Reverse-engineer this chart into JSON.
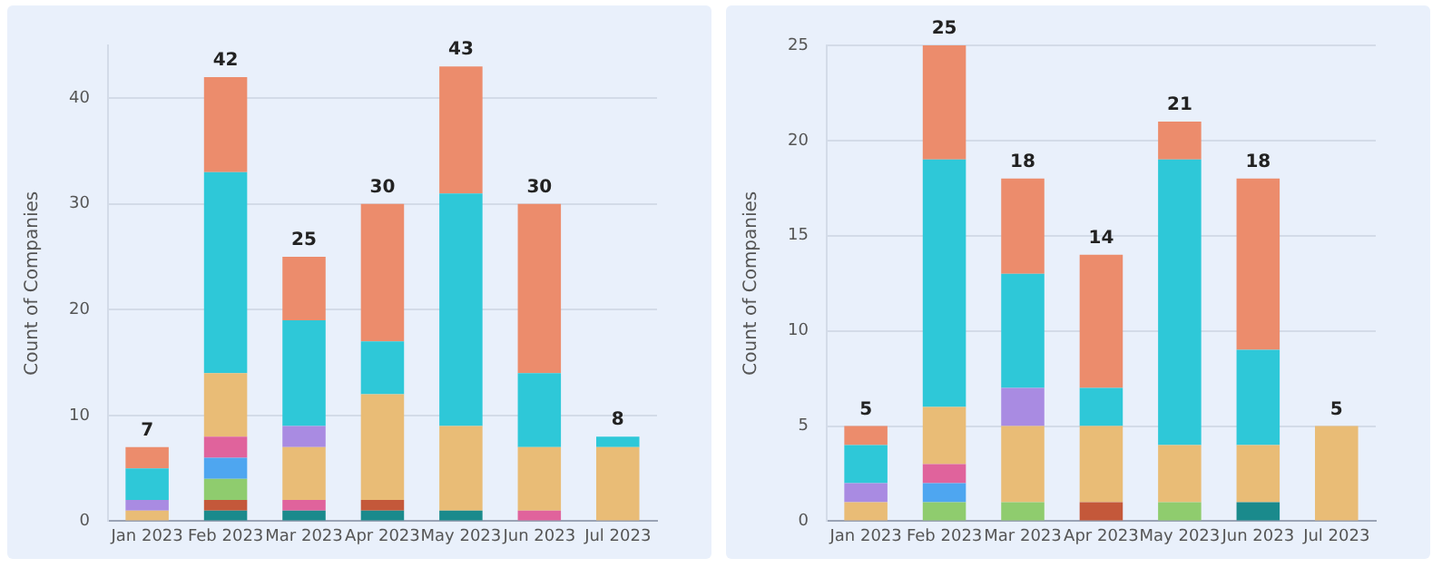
{
  "chart_data": [
    {
      "type": "bar",
      "stacked": true,
      "ylabel": "Count of Companies",
      "categories": [
        "Jan 2023",
        "Feb 2023",
        "Mar 2023",
        "Apr 2023",
        "May 2023",
        "Jun 2023",
        "Jul 2023"
      ],
      "ylim": [
        0,
        45
      ],
      "yticks": [
        0,
        10,
        20,
        30,
        40
      ],
      "grid": "y",
      "legend": false,
      "totals": [
        "7",
        "42",
        "25",
        "30",
        "43",
        "30",
        "8"
      ],
      "series": [
        {
          "color": "#1a8a8c",
          "values": [
            null,
            1,
            1,
            1,
            1,
            null,
            null
          ]
        },
        {
          "color": "#c4583a",
          "values": [
            null,
            1,
            null,
            1,
            null,
            null,
            null
          ]
        },
        {
          "color": "#8fcc6e",
          "values": [
            null,
            2,
            null,
            null,
            null,
            null,
            null
          ]
        },
        {
          "color": "#4ea6f0",
          "values": [
            null,
            2,
            null,
            null,
            null,
            null,
            null
          ]
        },
        {
          "color": "#e0639c",
          "values": [
            null,
            2,
            1,
            null,
            null,
            1,
            null
          ]
        },
        {
          "color": "#e9bc76",
          "values": [
            1,
            6,
            5,
            10,
            8,
            6,
            7
          ]
        },
        {
          "color": "#a98be2",
          "values": [
            1,
            null,
            2,
            null,
            null,
            null,
            null
          ]
        },
        {
          "color": "#2ec8d8",
          "values": [
            3,
            19,
            10,
            5,
            22,
            7,
            1
          ]
        },
        {
          "color": "#ec8c6c",
          "values": [
            2,
            9,
            6,
            13,
            12,
            16,
            null
          ]
        }
      ]
    },
    {
      "type": "bar",
      "stacked": true,
      "ylabel": "Count of Companies",
      "categories": [
        "Jan 2023",
        "Feb 2023",
        "Mar 2023",
        "Apr 2023",
        "May 2023",
        "Jun 2023",
        "Jul 2023"
      ],
      "ylim": [
        0,
        25
      ],
      "yticks": [
        0,
        5,
        10,
        15,
        20,
        25
      ],
      "grid": "y",
      "legend": false,
      "totals": [
        "5",
        "25",
        "18",
        "14",
        "21",
        "18",
        "5"
      ],
      "series": [
        {
          "color": "#1a8a8c",
          "values": [
            null,
            null,
            null,
            null,
            null,
            1,
            null
          ]
        },
        {
          "color": "#c4583a",
          "values": [
            null,
            null,
            null,
            1,
            null,
            null,
            null
          ]
        },
        {
          "color": "#8fcc6e",
          "values": [
            null,
            1,
            1,
            null,
            1,
            null,
            null
          ]
        },
        {
          "color": "#4ea6f0",
          "values": [
            null,
            1,
            null,
            null,
            null,
            null,
            null
          ]
        },
        {
          "color": "#e0639c",
          "values": [
            null,
            1,
            null,
            null,
            null,
            null,
            null
          ]
        },
        {
          "color": "#e9bc76",
          "values": [
            1,
            3,
            4,
            4,
            3,
            3,
            5
          ]
        },
        {
          "color": "#a98be2",
          "values": [
            1,
            null,
            2,
            null,
            null,
            null,
            null
          ]
        },
        {
          "color": "#2ec8d8",
          "values": [
            2,
            13,
            6,
            2,
            15,
            5,
            null
          ]
        },
        {
          "color": "#ec8c6c",
          "values": [
            1,
            6,
            5,
            7,
            2,
            9,
            null
          ]
        }
      ]
    }
  ]
}
